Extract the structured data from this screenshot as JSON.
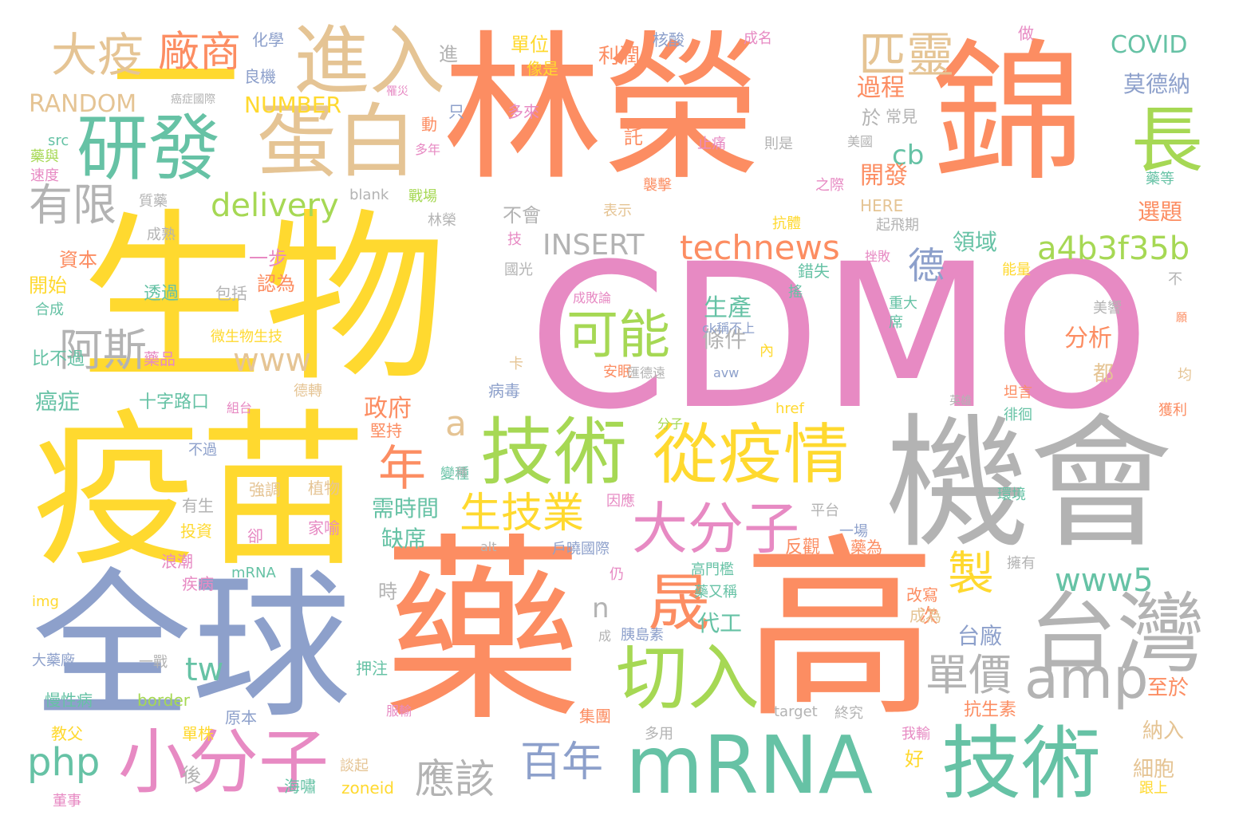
{
  "palette": {
    "orange": "#fc8d62",
    "yellow": "#ffd92f",
    "teal": "#66c2a5",
    "blue": "#8da0cb",
    "pink": "#e78ac3",
    "green": "#a6d854",
    "tan": "#e5c494",
    "gray": "#b3b3b3"
  },
  "words": [
    {
      "text": "CDMO",
      "color": "pink"
    },
    {
      "text": "林榮",
      "color": "orange"
    },
    {
      "text": "錦",
      "color": "orange"
    },
    {
      "text": "生物",
      "color": "yellow"
    },
    {
      "text": "疫苗",
      "color": "yellow"
    },
    {
      "text": "機會",
      "color": "gray"
    },
    {
      "text": "全球",
      "color": "blue"
    },
    {
      "text": "藥",
      "color": "orange"
    },
    {
      "text": "高",
      "color": "orange"
    },
    {
      "text": "一",
      "color": "yellow"
    },
    {
      "text": "進入",
      "color": "tan"
    },
    {
      "text": "蛋白",
      "color": "tan"
    },
    {
      "text": "研發",
      "color": "teal"
    },
    {
      "text": "大疫",
      "color": "tan"
    },
    {
      "text": "廠商",
      "color": "orange"
    },
    {
      "text": "匹靈",
      "color": "tan"
    },
    {
      "text": "長",
      "color": "green"
    },
    {
      "text": "技術",
      "color": "green"
    },
    {
      "text": "從疫情",
      "color": "yellow"
    },
    {
      "text": "台灣",
      "color": "gray"
    },
    {
      "text": "mRNA",
      "color": "teal"
    },
    {
      "text": "技術",
      "color": "teal"
    },
    {
      "text": "小分子",
      "color": "pink"
    },
    {
      "text": "大分子",
      "color": "pink"
    },
    {
      "text": "切入",
      "color": "green"
    },
    {
      "text": "晟",
      "color": "orange"
    },
    {
      "text": "可能",
      "color": "green"
    },
    {
      "text": "amp",
      "color": "gray"
    },
    {
      "text": "有限",
      "color": "gray"
    },
    {
      "text": "阿斯",
      "color": "gray"
    },
    {
      "text": "年",
      "color": "orange"
    },
    {
      "text": "delivery",
      "color": "green"
    },
    {
      "text": "technews",
      "color": "orange"
    },
    {
      "text": "a4b3f35b",
      "color": "green"
    },
    {
      "text": "www5",
      "color": "teal"
    },
    {
      "text": "生技業",
      "color": "yellow"
    },
    {
      "text": "製",
      "color": "yellow"
    },
    {
      "text": "單價",
      "color": "gray"
    },
    {
      "text": "百年",
      "color": "blue"
    },
    {
      "text": "應該",
      "color": "gray"
    },
    {
      "text": "php",
      "color": "teal"
    },
    {
      "text": "www",
      "color": "tan"
    },
    {
      "text": "INSERT",
      "color": "gray"
    },
    {
      "text": "德",
      "color": "blue"
    },
    {
      "text": "cb",
      "color": "teal"
    },
    {
      "text": "a",
      "color": "tan"
    },
    {
      "text": "tw",
      "color": "teal"
    },
    {
      "text": "n",
      "color": "gray"
    },
    {
      "text": "COVID",
      "color": "teal"
    },
    {
      "text": "莫德納",
      "color": "blue"
    },
    {
      "text": "RANDOM",
      "color": "tan"
    },
    {
      "text": "NUMBER",
      "color": "yellow"
    },
    {
      "text": "過程",
      "color": "orange"
    },
    {
      "text": "開發",
      "color": "orange"
    },
    {
      "text": "生產",
      "color": "teal"
    },
    {
      "text": "條件",
      "color": "gray"
    },
    {
      "text": "分析",
      "color": "orange"
    },
    {
      "text": "領域",
      "color": "teal"
    },
    {
      "text": "選題",
      "color": "orange"
    },
    {
      "text": "政府",
      "color": "orange"
    },
    {
      "text": "需時間",
      "color": "teal"
    },
    {
      "text": "缺席",
      "color": "teal"
    },
    {
      "text": "代工",
      "color": "teal"
    },
    {
      "text": "台廠",
      "color": "blue"
    },
    {
      "text": "癌症",
      "color": "teal"
    },
    {
      "text": "利潤",
      "color": "orange"
    },
    {
      "text": "單位",
      "color": "yellow"
    },
    {
      "text": "化學",
      "color": "blue"
    },
    {
      "text": "良機",
      "color": "blue"
    },
    {
      "text": "核酸",
      "color": "blue"
    },
    {
      "text": "成名",
      "color": "pink"
    },
    {
      "text": "做",
      "color": "pink"
    },
    {
      "text": "進",
      "color": "gray"
    },
    {
      "text": "像是",
      "color": "yellow"
    },
    {
      "text": "多來",
      "color": "pink"
    },
    {
      "text": "至於",
      "color": "orange"
    },
    {
      "text": "納入",
      "color": "tan"
    },
    {
      "text": "細胞",
      "color": "tan"
    },
    {
      "text": "抗生素",
      "color": "orange"
    },
    {
      "text": "好",
      "color": "yellow"
    },
    {
      "text": "都",
      "color": "tan"
    },
    {
      "text": "次",
      "color": "orange"
    },
    {
      "text": "時",
      "color": "gray"
    },
    {
      "text": "於",
      "color": "gray"
    },
    {
      "text": "常見",
      "color": "gray"
    },
    {
      "text": "美國",
      "color": "gray"
    },
    {
      "text": "不會",
      "color": "gray"
    },
    {
      "text": "資本",
      "color": "orange"
    },
    {
      "text": "開始",
      "color": "yellow"
    },
    {
      "text": "一步",
      "color": "pink"
    },
    {
      "text": "認為",
      "color": "orange"
    },
    {
      "text": "合成",
      "color": "teal"
    },
    {
      "text": "透過",
      "color": "teal"
    },
    {
      "text": "包括",
      "color": "gray"
    },
    {
      "text": "藥品",
      "color": "pink"
    },
    {
      "text": "微生物生技",
      "color": "yellow"
    },
    {
      "text": "比不過",
      "color": "teal"
    },
    {
      "text": "十字路口",
      "color": "teal"
    },
    {
      "text": "德轉",
      "color": "tan"
    },
    {
      "text": "不過",
      "color": "blue"
    },
    {
      "text": "強調",
      "color": "tan"
    },
    {
      "text": "植物",
      "color": "tan"
    },
    {
      "text": "有生",
      "color": "gray"
    },
    {
      "text": "投資",
      "color": "yellow"
    },
    {
      "text": "卻",
      "color": "pink"
    },
    {
      "text": "家喻",
      "color": "pink"
    },
    {
      "text": "浪潮",
      "color": "pink"
    },
    {
      "text": "疾病",
      "color": "pink"
    },
    {
      "text": "mRNA",
      "color": "teal"
    },
    {
      "text": "img",
      "color": "yellow"
    },
    {
      "text": "大藥廠",
      "color": "blue"
    },
    {
      "text": "一戰",
      "color": "gray"
    },
    {
      "text": "押注",
      "color": "teal"
    },
    {
      "text": "慢性病",
      "color": "teal"
    },
    {
      "text": "border",
      "color": "green"
    },
    {
      "text": "原本",
      "color": "blue"
    },
    {
      "text": "單株",
      "color": "yellow"
    },
    {
      "text": "教父",
      "color": "yellow"
    },
    {
      "text": "後",
      "color": "gray"
    },
    {
      "text": "海嘯",
      "color": "teal"
    },
    {
      "text": "zoneid",
      "color": "yellow"
    },
    {
      "text": "談起",
      "color": "tan"
    },
    {
      "text": "董事",
      "color": "pink"
    },
    {
      "text": "src",
      "color": "teal"
    },
    {
      "text": "藥與",
      "color": "green"
    },
    {
      "text": "速度",
      "color": "pink"
    },
    {
      "text": "質藥",
      "color": "gray"
    },
    {
      "text": "blank",
      "color": "gray"
    },
    {
      "text": "戰場",
      "color": "green"
    },
    {
      "text": "林榮",
      "color": "gray"
    },
    {
      "text": "表示",
      "color": "tan"
    },
    {
      "text": "HERE",
      "color": "tan"
    },
    {
      "text": "起飛期",
      "color": "gray"
    },
    {
      "text": "抗體",
      "color": "yellow"
    },
    {
      "text": "國光",
      "color": "gray"
    },
    {
      "text": "錯失",
      "color": "teal"
    },
    {
      "text": "能量",
      "color": "yellow"
    },
    {
      "text": "重大",
      "color": "teal"
    },
    {
      "text": "美響",
      "color": "gray"
    },
    {
      "text": "安眠",
      "color": "orange"
    },
    {
      "text": "病毒",
      "color": "blue"
    },
    {
      "text": "href",
      "color": "yellow"
    },
    {
      "text": "avw",
      "color": "blue"
    },
    {
      "text": "坦言",
      "color": "orange"
    },
    {
      "text": "徘徊",
      "color": "teal"
    },
    {
      "text": "分子",
      "color": "green"
    },
    {
      "text": "變種",
      "color": "teal"
    },
    {
      "text": "因應",
      "color": "pink"
    },
    {
      "text": "平台",
      "color": "gray"
    },
    {
      "text": "一場",
      "color": "blue"
    },
    {
      "text": "反觀",
      "color": "orange"
    },
    {
      "text": "藥為",
      "color": "orange"
    },
    {
      "text": "戶曉國際",
      "color": "blue"
    },
    {
      "text": "高門檻",
      "color": "teal"
    },
    {
      "text": "藥又稱",
      "color": "teal"
    },
    {
      "text": "改寫",
      "color": "orange"
    },
    {
      "text": "成為",
      "color": "tan"
    },
    {
      "text": "胰島素",
      "color": "blue"
    },
    {
      "text": "集團",
      "color": "orange"
    },
    {
      "text": "target",
      "color": "gray"
    },
    {
      "text": "我輸",
      "color": "pink"
    },
    {
      "text": "多用",
      "color": "gray"
    },
    {
      "text": "alt",
      "color": "gray"
    },
    {
      "text": "擁有",
      "color": "gray"
    },
    {
      "text": "獲利",
      "color": "orange"
    },
    {
      "text": "止痛",
      "color": "pink"
    },
    {
      "text": "則是",
      "color": "gray"
    },
    {
      "text": "襲擊",
      "color": "orange"
    },
    {
      "text": "之際",
      "color": "pink"
    },
    {
      "text": "藥等",
      "color": "teal"
    },
    {
      "text": "託",
      "color": "orange"
    },
    {
      "text": "只",
      "color": "blue"
    },
    {
      "text": "動",
      "color": "orange"
    },
    {
      "text": "多年",
      "color": "pink"
    },
    {
      "text": "成熟",
      "color": "gray"
    },
    {
      "text": "技",
      "color": "pink"
    },
    {
      "text": "成敗論",
      "color": "pink"
    },
    {
      "text": "不",
      "color": "gray"
    },
    {
      "text": "ck稱不上",
      "color": "blue"
    },
    {
      "text": "內",
      "color": "yellow"
    },
    {
      "text": "卡",
      "color": "tan"
    },
    {
      "text": "匯德遠",
      "color": "gray"
    },
    {
      "text": "英雄",
      "color": "gray"
    },
    {
      "text": "均",
      "color": "tan"
    },
    {
      "text": "仍",
      "color": "pink"
    },
    {
      "text": "成",
      "color": "gray"
    },
    {
      "text": "搖",
      "color": "teal"
    },
    {
      "text": "挫敗",
      "color": "pink"
    },
    {
      "text": "席",
      "color": "teal"
    },
    {
      "text": "組台",
      "color": "pink"
    },
    {
      "text": "服輸",
      "color": "pink"
    },
    {
      "text": "終究",
      "color": "gray"
    },
    {
      "text": "跟上",
      "color": "yellow"
    },
    {
      "text": "環境",
      "color": "teal"
    },
    {
      "text": "堅持",
      "color": "orange"
    },
    {
      "text": "賭",
      "color": "gray"
    },
    {
      "text": "罹災",
      "color": "pink"
    },
    {
      "text": "癌症國際",
      "color": "gray"
    },
    {
      "text": "願",
      "color": "orange"
    }
  ]
}
